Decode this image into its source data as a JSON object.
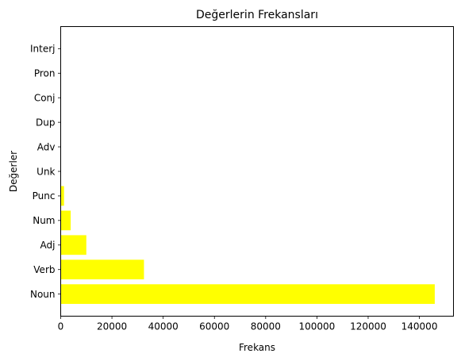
{
  "chart_data": {
    "type": "bar",
    "orientation": "horizontal",
    "title": "Değerlerin Frekansları",
    "xlabel": "Frekans",
    "ylabel": "Değerler",
    "categories": [
      "Noun",
      "Verb",
      "Adj",
      "Num",
      "Punc",
      "Unk",
      "Adv",
      "Dup",
      "Conj",
      "Pron",
      "Interj"
    ],
    "values": [
      146000,
      32500,
      10000,
      3900,
      1300,
      40,
      30,
      20,
      15,
      10,
      5
    ],
    "xlim": [
      0,
      153300
    ],
    "xticks": [
      0,
      20000,
      40000,
      60000,
      80000,
      100000,
      120000,
      140000
    ],
    "grid": false,
    "bar_color": "#ffff00"
  }
}
